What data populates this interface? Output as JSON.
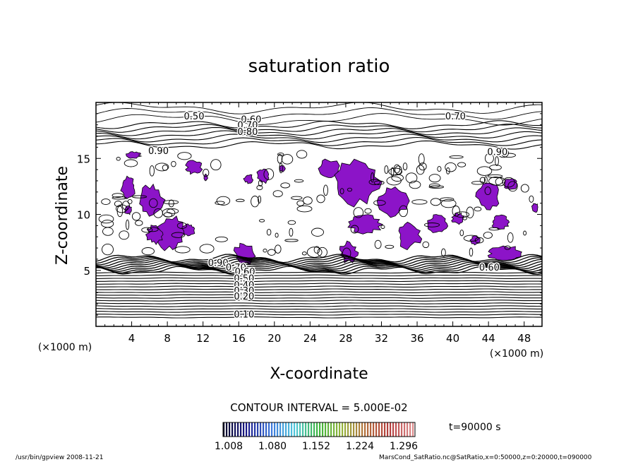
{
  "chart_data": {
    "type": "contour",
    "title": "saturation ratio",
    "xlabel": "X-coordinate",
    "ylabel": "Z-coordinate",
    "x_unit_left": "(×1000 m)",
    "x_unit_right": "(×1000 m)",
    "xlim": [
      0,
      50
    ],
    "ylim": [
      0,
      20
    ],
    "x_ticks": [
      4,
      8,
      12,
      16,
      20,
      24,
      28,
      32,
      36,
      40,
      44,
      48
    ],
    "y_ticks": [
      5,
      10,
      15
    ],
    "contour_interval_text": "CONTOUR INTERVAL = 5.000E-02",
    "time_text": "t=90000 s",
    "colorbar_ticks": [
      "1.008",
      "1.080",
      "1.152",
      "1.224",
      "1.296"
    ],
    "colorbar_colors": [
      "#0a0a28",
      "#1a1a8c",
      "#3c78dc",
      "#50c8dc",
      "#3cb43c",
      "#96b43c",
      "#b46e3c",
      "#b43c3c",
      "#dc8c8c"
    ],
    "contour_labels": [
      {
        "text": "0.50",
        "x": 11.0,
        "y": 18.5
      },
      {
        "text": "0.60",
        "x": 17.4,
        "y": 18.2
      },
      {
        "text": "0.70",
        "x": 17.0,
        "y": 17.7
      },
      {
        "text": "0.80",
        "x": 17.0,
        "y": 17.1
      },
      {
        "text": "0.70",
        "x": 40.3,
        "y": 18.5
      },
      {
        "text": "0.90",
        "x": 7.0,
        "y": 15.4
      },
      {
        "text": "0.90",
        "x": 45.0,
        "y": 15.3
      },
      {
        "text": "0.90",
        "x": 13.7,
        "y": 5.4
      },
      {
        "text": "0.70",
        "x": 15.7,
        "y": 5.0
      },
      {
        "text": "0.60",
        "x": 16.7,
        "y": 4.6
      },
      {
        "text": "0.50",
        "x": 16.6,
        "y": 4.0
      },
      {
        "text": "0.40",
        "x": 16.6,
        "y": 3.4
      },
      {
        "text": "0.30",
        "x": 16.6,
        "y": 2.9
      },
      {
        "text": "0.20",
        "x": 16.6,
        "y": 2.4
      },
      {
        "text": "0.10",
        "x": 16.6,
        "y": 0.8
      },
      {
        "text": "0.60",
        "x": 44.1,
        "y": 5.0
      }
    ],
    "supersaturated_regions": [
      {
        "x": 4.2,
        "y": 15.3,
        "rx": 0.8,
        "ry": 0.3
      },
      {
        "x": 3.6,
        "y": 12.4,
        "rx": 0.8,
        "ry": 0.9
      },
      {
        "x": 3.6,
        "y": 10.4,
        "rx": 0.4,
        "ry": 0.4
      },
      {
        "x": 6.2,
        "y": 11.3,
        "rx": 1.4,
        "ry": 1.3
      },
      {
        "x": 8.4,
        "y": 8.4,
        "rx": 1.5,
        "ry": 1.6
      },
      {
        "x": 6.6,
        "y": 8.2,
        "rx": 0.9,
        "ry": 0.8
      },
      {
        "x": 11.0,
        "y": 14.2,
        "rx": 0.9,
        "ry": 0.6
      },
      {
        "x": 10.4,
        "y": 8.6,
        "rx": 0.7,
        "ry": 0.5
      },
      {
        "x": 12.3,
        "y": 13.3,
        "rx": 0.2,
        "ry": 0.3
      },
      {
        "x": 17.1,
        "y": 13.2,
        "rx": 0.5,
        "ry": 0.4
      },
      {
        "x": 16.7,
        "y": 6.5,
        "rx": 1.2,
        "ry": 0.9
      },
      {
        "x": 18.7,
        "y": 13.4,
        "rx": 0.7,
        "ry": 0.6
      },
      {
        "x": 26.2,
        "y": 14.1,
        "rx": 1.1,
        "ry": 0.8
      },
      {
        "x": 29.3,
        "y": 12.9,
        "rx": 2.4,
        "ry": 2.0
      },
      {
        "x": 28.3,
        "y": 6.6,
        "rx": 1.0,
        "ry": 0.9
      },
      {
        "x": 33.3,
        "y": 11.2,
        "rx": 1.7,
        "ry": 1.3
      },
      {
        "x": 30.2,
        "y": 9.1,
        "rx": 1.8,
        "ry": 0.8
      },
      {
        "x": 35.1,
        "y": 8.2,
        "rx": 1.3,
        "ry": 1.2
      },
      {
        "x": 38.3,
        "y": 9.2,
        "rx": 1.1,
        "ry": 0.8
      },
      {
        "x": 40.6,
        "y": 9.6,
        "rx": 0.7,
        "ry": 0.5
      },
      {
        "x": 44.0,
        "y": 11.6,
        "rx": 1.3,
        "ry": 1.1
      },
      {
        "x": 45.3,
        "y": 9.3,
        "rx": 1.0,
        "ry": 0.6
      },
      {
        "x": 46.5,
        "y": 12.7,
        "rx": 0.8,
        "ry": 0.5
      },
      {
        "x": 49.2,
        "y": 10.6,
        "rx": 0.4,
        "ry": 0.4
      },
      {
        "x": 46.0,
        "y": 6.5,
        "rx": 2.1,
        "ry": 0.6
      },
      {
        "x": 42.5,
        "y": 7.7,
        "rx": 0.5,
        "ry": 0.4
      },
      {
        "x": 20.9,
        "y": 14.1,
        "rx": 0.3,
        "ry": 0.3
      }
    ]
  },
  "footer": {
    "left": "/usr/bin/gpview   2008-11-21",
    "right": "MarsCond_SatRatio.nc@SatRatio,x=0:50000,z=0:20000,t=090000"
  },
  "fill_color": "#8c14c8"
}
